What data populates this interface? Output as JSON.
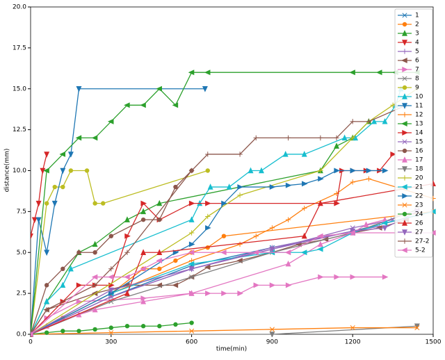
{
  "chart_data": {
    "type": "line",
    "x_label": "time(min)",
    "y_label": "distance(mm)",
    "xlim": [
      0,
      1500
    ],
    "xticks": [
      0,
      300,
      600,
      900,
      1200,
      1500
    ],
    "ylim": [
      0,
      20
    ],
    "yticks": [
      {
        "value": 0,
        "label": "0.0"
      },
      {
        "value": 2.5,
        "label": "2.5"
      },
      {
        "value": 5,
        "label": "5.0"
      },
      {
        "value": 7.5,
        "label": "7.5"
      },
      {
        "value": 10,
        "label": "10.0"
      },
      {
        "value": 12.5,
        "label": "12.5"
      },
      {
        "value": 15,
        "label": "15.0"
      },
      {
        "value": 17.5,
        "label": "17.5"
      },
      {
        "value": 20,
        "label": "20.0"
      }
    ],
    "grid": false,
    "legend": "upper right",
    "series": [
      {
        "name": "1",
        "color": "#1f77b4",
        "marker": "x",
        "x": [
          0,
          300,
          600,
          900,
          1200,
          1500
        ],
        "values": [
          0,
          2.3,
          4.2,
          5.3,
          6.3,
          7.5
        ]
      },
      {
        "name": "2",
        "color": "#ff7f0e",
        "marker": "o",
        "x": [
          0,
          120,
          300,
          420,
          480,
          540,
          600,
          660,
          720,
          1500
        ],
        "values": [
          0,
          1,
          2.5,
          4,
          4,
          4.5,
          5,
          5.3,
          6,
          7.5
        ]
      },
      {
        "name": "3",
        "color": "#2ca02c",
        "marker": "^",
        "x": [
          0,
          60,
          180,
          240,
          360,
          420,
          480,
          1080,
          1140,
          1200,
          1260
        ],
        "values": [
          0,
          2,
          5,
          5.5,
          7,
          7.5,
          8,
          10,
          11.5,
          12,
          13
        ]
      },
      {
        "name": "4",
        "color": "#d62728",
        "marker": "v",
        "x": [
          0,
          15,
          30,
          45,
          60
        ],
        "values": [
          6,
          7,
          8,
          10,
          11
        ]
      },
      {
        "name": "5",
        "color": "#9467bd",
        "marker": "+",
        "x": [
          0,
          300,
          600,
          900,
          1200,
          1300
        ],
        "values": [
          0,
          2.3,
          4,
          5.3,
          6.3,
          6.6
        ]
      },
      {
        "name": "6",
        "color": "#8c564b",
        "marker": "<",
        "x": [
          0,
          60,
          240,
          360,
          480,
          540,
          600,
          660,
          780,
          900,
          1000,
          1100,
          1200,
          1300,
          1400
        ],
        "values": [
          0,
          1.5,
          2.5,
          3,
          3,
          3,
          3.5,
          4.1,
          4.5,
          5,
          5.5,
          5.8,
          6.2,
          6.5,
          7
        ]
      },
      {
        "name": "7",
        "color": "#e377c2",
        "marker": ">",
        "x": [
          0,
          60,
          180,
          420,
          600,
          660,
          720,
          780,
          840,
          900,
          960,
          1080,
          1140,
          1200,
          1320
        ],
        "values": [
          0,
          1,
          2,
          2.2,
          2.5,
          2.5,
          2.5,
          2.5,
          3,
          3,
          3,
          3.5,
          3.5,
          3.5,
          3.5
        ]
      },
      {
        "name": "8",
        "color": "#7f7f7f",
        "marker": "x",
        "x": [
          0,
          300,
          600,
          900,
          1200,
          1440
        ],
        "values": [
          0,
          2,
          3.5,
          5,
          6.2,
          7.6
        ]
      },
      {
        "name": "9",
        "color": "#bcbd22",
        "marker": "o",
        "x": [
          0,
          60,
          90,
          120,
          150,
          210,
          240,
          270,
          660
        ],
        "values": [
          0,
          8,
          9,
          9,
          10,
          10,
          8,
          8,
          10
        ]
      },
      {
        "name": "10",
        "color": "#17becf",
        "marker": "^",
        "x": [
          0,
          60,
          120,
          150,
          600,
          630,
          670,
          740,
          820,
          860,
          950,
          1020,
          1170,
          1210,
          1280,
          1320,
          1360,
          1380
        ],
        "values": [
          0,
          2,
          3,
          4,
          7,
          8,
          9,
          9,
          10,
          10,
          11,
          11,
          12,
          12,
          13,
          13,
          14,
          15
        ]
      },
      {
        "name": "11",
        "color": "#1f77b4",
        "marker": "v",
        "x": [
          0,
          30,
          60,
          90,
          120,
          150,
          180,
          650
        ],
        "values": [
          0,
          7,
          5,
          8,
          10,
          11,
          15,
          15
        ]
      },
      {
        "name": "12",
        "color": "#ff7f0e",
        "marker": "+",
        "x": [
          0,
          300,
          600,
          780,
          840,
          900,
          960,
          1020,
          1140,
          1200,
          1260,
          1500
        ],
        "values": [
          0,
          2.5,
          4.5,
          5.5,
          6,
          6.5,
          7,
          7.7,
          8.6,
          9.3,
          9.5,
          8.3
        ]
      },
      {
        "name": "13",
        "color": "#2ca02c",
        "marker": "<",
        "x": [
          0,
          60,
          120,
          180,
          240,
          300,
          360,
          420,
          480,
          540,
          600,
          660,
          1200,
          1300,
          1360,
          1440
        ],
        "values": [
          0,
          10,
          11,
          12,
          12,
          13,
          14,
          14,
          15,
          14,
          16,
          16,
          16,
          16,
          16,
          16
        ]
      },
      {
        "name": "14",
        "color": "#d62728",
        "marker": ">",
        "x": [
          0,
          120,
          180,
          240,
          300,
          360,
          420,
          480,
          600,
          660,
          1140,
          1160,
          1200,
          1250,
          1300,
          1350
        ],
        "values": [
          0,
          2,
          3,
          3,
          3,
          6,
          8,
          7,
          8,
          8,
          8,
          10,
          10,
          10,
          10,
          11
        ]
      },
      {
        "name": "15",
        "color": "#9467bd",
        "marker": "x",
        "x": [
          0,
          300,
          600,
          900,
          1200,
          1350
        ],
        "values": [
          0,
          2.3,
          4,
          5.2,
          6.5,
          7
        ]
      },
      {
        "name": "16",
        "color": "#8c564b",
        "marker": "o",
        "x": [
          0,
          60,
          120,
          180,
          240,
          300,
          420,
          480,
          540,
          600
        ],
        "values": [
          0,
          3,
          4,
          5,
          5,
          6,
          7,
          7,
          9,
          10
        ]
      },
      {
        "name": "17",
        "color": "#e377c2",
        "marker": "^",
        "x": [
          0,
          60,
          180,
          240,
          420,
          600,
          960,
          1080,
          1200,
          1250,
          1320
        ],
        "values": [
          0,
          0.5,
          1.2,
          1.5,
          2,
          2.5,
          4.3,
          5.5,
          6.2,
          6.7,
          7
        ]
      },
      {
        "name": "18",
        "color": "#7f7f7f",
        "marker": "v",
        "x": [
          0,
          900,
          1440
        ],
        "values": [
          0,
          0,
          0.5
        ]
      },
      {
        "name": "20",
        "color": "#bcbd22",
        "marker": "+",
        "x": [
          0,
          600,
          660,
          780,
          1080,
          1200,
          1260,
          1350,
          1440
        ],
        "values": [
          0,
          6.2,
          7.2,
          8.5,
          10,
          12,
          13,
          14,
          15
        ]
      },
      {
        "name": "21",
        "color": "#17becf",
        "marker": "<",
        "x": [
          0,
          300,
          600,
          900,
          1020,
          1080,
          1200,
          1320,
          1500
        ],
        "values": [
          0,
          2.5,
          4.3,
          5,
          5,
          5.2,
          6.2,
          6.8,
          7.5
        ]
      },
      {
        "name": "22",
        "color": "#1f77b4",
        "marker": ">",
        "x": [
          0,
          300,
          540,
          600,
          660,
          720,
          780,
          900,
          960,
          1020,
          1080,
          1140,
          1200,
          1260,
          1320
        ],
        "values": [
          0,
          2.5,
          5,
          5.5,
          6.5,
          8,
          9,
          9,
          9.1,
          9.2,
          9.5,
          10,
          10,
          10,
          10
        ]
      },
      {
        "name": "23",
        "color": "#ff7f0e",
        "marker": "x",
        "x": [
          0,
          300,
          600,
          900,
          1200,
          1440
        ],
        "values": [
          0,
          0.1,
          0.2,
          0.3,
          0.4,
          0.4
        ]
      },
      {
        "name": "24",
        "color": "#2ca02c",
        "marker": "o",
        "x": [
          0,
          60,
          120,
          180,
          240,
          300,
          360,
          420,
          480,
          540,
          600
        ],
        "values": [
          0,
          0.1,
          0.2,
          0.2,
          0.3,
          0.4,
          0.5,
          0.5,
          0.5,
          0.6,
          0.7
        ]
      },
      {
        "name": "26",
        "color": "#d62728",
        "marker": "^",
        "x": [
          0,
          360,
          420,
          480,
          1020,
          1080,
          1500
        ],
        "values": [
          0,
          2.5,
          5,
          5,
          6,
          8,
          9.2
        ]
      },
      {
        "name": "27",
        "color": "#9467bd",
        "marker": "v",
        "x": [
          0,
          300,
          600,
          900,
          1200,
          1320,
          1440
        ],
        "values": [
          0,
          2.7,
          4,
          5.2,
          6.3,
          6.5,
          7.5
        ]
      },
      {
        "name": "27-2",
        "color": "#8c564b",
        "marker": "+",
        "x": [
          0,
          60,
          240,
          300,
          360,
          600,
          660,
          780,
          840,
          960,
          1080,
          1140,
          1200,
          1260,
          1400
        ],
        "values": [
          0,
          1.5,
          3,
          4,
          5,
          10,
          11,
          11,
          12,
          12,
          12,
          12,
          13,
          13,
          14
        ]
      },
      {
        "name": "5-2",
        "color": "#e377c2",
        "marker": "<",
        "x": [
          0,
          240,
          300,
          360,
          420,
          480,
          600,
          720,
          840,
          960,
          1080,
          1200,
          1500
        ],
        "values": [
          0,
          3.5,
          3.5,
          3.5,
          4,
          4.5,
          5,
          5,
          5,
          5,
          6,
          6.2,
          6.2
        ]
      }
    ]
  }
}
